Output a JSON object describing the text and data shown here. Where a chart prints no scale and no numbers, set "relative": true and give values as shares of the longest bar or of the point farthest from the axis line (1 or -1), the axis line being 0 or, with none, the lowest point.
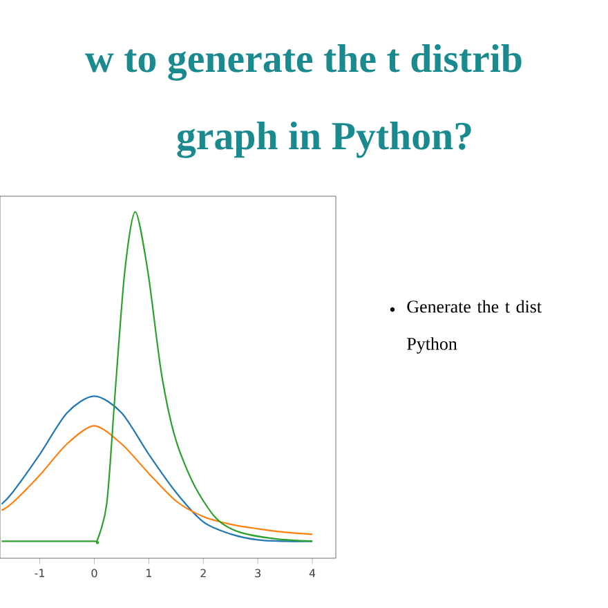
{
  "chart_data": {
    "type": "line",
    "title": "w to generate the t distrib",
    "subtitle": "graph in Python?",
    "annotations": [
      "Generate the t dist Python"
    ],
    "relative": true,
    "xlim": [
      -1.73,
      4.43
    ],
    "xticks": [
      -1,
      0,
      1,
      2,
      3,
      4
    ],
    "tick_labels": "x",
    "grid": false,
    "marker": "none",
    "line_style": "solid",
    "series": [
      {
        "color": "#1f77b4",
        "x": [
          -1.7,
          -1.5,
          -1,
          -0.5,
          0,
          0.5,
          1,
          1.5,
          2,
          2.5,
          3,
          3.5,
          4
        ],
        "values": [
          0.156,
          0.19,
          0.3,
          0.42,
          0.468,
          0.42,
          0.3,
          0.19,
          0.105,
          0.07,
          0.053,
          0.049,
          0.049
        ]
      },
      {
        "color": "#ff7f0e",
        "x": [
          -1.7,
          -1.5,
          -1,
          -0.5,
          0,
          0.5,
          1,
          1.5,
          2,
          2.5,
          3,
          3.5,
          4
        ],
        "values": [
          0.138,
          0.16,
          0.24,
          0.33,
          0.382,
          0.33,
          0.245,
          0.165,
          0.12,
          0.098,
          0.085,
          0.075,
          0.069
        ]
      },
      {
        "color": "#2ca02c",
        "x": [
          -1.7,
          -1,
          0,
          0.05,
          0.23,
          0.39,
          0.56,
          0.75,
          0.98,
          1.23,
          1.48,
          1.82,
          2.23,
          2.65,
          3.32,
          4
        ],
        "values": [
          0.049,
          0.049,
          0.049,
          0.05,
          0.16,
          0.495,
          0.83,
          1.0,
          0.83,
          0.535,
          0.35,
          0.215,
          0.116,
          0.076,
          0.056,
          0.049
        ]
      }
    ]
  }
}
